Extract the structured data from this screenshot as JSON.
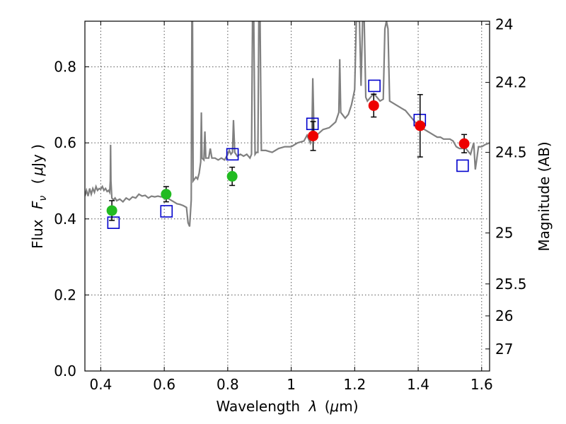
{
  "chart_data": {
    "type": "scatter",
    "xlabel_text": "Wavelength",
    "xlabel_symbol": "λ",
    "xlabel_unit_open": "(",
    "xlabel_unit_mu": "μ",
    "xlabel_unit_rest": "m)",
    "ylabel_text": "Flux",
    "ylabel_symbol": "F",
    "ylabel_sub": "ν",
    "ylabel_unit_open": "(",
    "ylabel_unit_mu": "μ",
    "ylabel_unit_rest": "Jy )",
    "y2label": "Magnitude (AB)",
    "xlim": [
      0.35,
      1.625
    ],
    "ylim": [
      0.0,
      0.92
    ],
    "grid": true,
    "x_ticks": [
      {
        "value": 0.4,
        "label": "0.4"
      },
      {
        "value": 0.6,
        "label": "0.6"
      },
      {
        "value": 0.8,
        "label": "0.8"
      },
      {
        "value": 1.0,
        "label": "1"
      },
      {
        "value": 1.2,
        "label": "1.2"
      },
      {
        "value": 1.4,
        "label": "1.4"
      },
      {
        "value": 1.6,
        "label": "1.6"
      }
    ],
    "y_ticks": [
      {
        "value": 0.0,
        "label": "0.0"
      },
      {
        "value": 0.2,
        "label": "0.2"
      },
      {
        "value": 0.4,
        "label": "0.4"
      },
      {
        "value": 0.6,
        "label": "0.6"
      },
      {
        "value": 0.8,
        "label": "0.8"
      }
    ],
    "y2_ticks": [
      {
        "label": "24",
        "flux": 0.912
      },
      {
        "label": "24.2",
        "flux": 0.759
      },
      {
        "label": "24.5",
        "flux": 0.575
      },
      {
        "label": "25",
        "flux": 0.363
      },
      {
        "label": "25.5",
        "flux": 0.229
      },
      {
        "label": "26",
        "flux": 0.145
      },
      {
        "label": "27",
        "flux": 0.058
      }
    ],
    "colors": {
      "spectrum": "#808080",
      "green": "#22bb22",
      "red": "#ee0000",
      "model": "#0000cc",
      "errorbar": "#000000"
    },
    "spectrum": [
      [
        0.35,
        0.46
      ],
      [
        0.355,
        0.475
      ],
      [
        0.36,
        0.46
      ],
      [
        0.365,
        0.48
      ],
      [
        0.37,
        0.465
      ],
      [
        0.375,
        0.48
      ],
      [
        0.38,
        0.47
      ],
      [
        0.385,
        0.485
      ],
      [
        0.39,
        0.475
      ],
      [
        0.395,
        0.48
      ],
      [
        0.4,
        0.478
      ],
      [
        0.405,
        0.485
      ],
      [
        0.41,
        0.475
      ],
      [
        0.415,
        0.48
      ],
      [
        0.42,
        0.472
      ],
      [
        0.425,
        0.475
      ],
      [
        0.428,
        0.47
      ],
      [
        0.43,
        0.5
      ],
      [
        0.431,
        0.595
      ],
      [
        0.432,
        0.5
      ],
      [
        0.435,
        0.455
      ],
      [
        0.44,
        0.45
      ],
      [
        0.445,
        0.455
      ],
      [
        0.45,
        0.448
      ],
      [
        0.46,
        0.452
      ],
      [
        0.47,
        0.445
      ],
      [
        0.48,
        0.455
      ],
      [
        0.49,
        0.45
      ],
      [
        0.5,
        0.458
      ],
      [
        0.51,
        0.455
      ],
      [
        0.52,
        0.465
      ],
      [
        0.53,
        0.46
      ],
      [
        0.54,
        0.462
      ],
      [
        0.55,
        0.455
      ],
      [
        0.56,
        0.46
      ],
      [
        0.57,
        0.458
      ],
      [
        0.58,
        0.46
      ],
      [
        0.59,
        0.458
      ],
      [
        0.6,
        0.46
      ],
      [
        0.61,
        0.455
      ],
      [
        0.62,
        0.45
      ],
      [
        0.63,
        0.445
      ],
      [
        0.64,
        0.44
      ],
      [
        0.65,
        0.438
      ],
      [
        0.66,
        0.435
      ],
      [
        0.67,
        0.43
      ],
      [
        0.675,
        0.39
      ],
      [
        0.68,
        0.38
      ],
      [
        0.685,
        0.45
      ],
      [
        0.687,
        0.92
      ],
      [
        0.689,
        0.92
      ],
      [
        0.691,
        0.5
      ],
      [
        0.7,
        0.51
      ],
      [
        0.705,
        0.505
      ],
      [
        0.71,
        0.52
      ],
      [
        0.715,
        0.55
      ],
      [
        0.717,
        0.68
      ],
      [
        0.719,
        0.56
      ],
      [
        0.725,
        0.555
      ],
      [
        0.728,
        0.63
      ],
      [
        0.731,
        0.56
      ],
      [
        0.74,
        0.56
      ],
      [
        0.745,
        0.585
      ],
      [
        0.75,
        0.56
      ],
      [
        0.76,
        0.56
      ],
      [
        0.77,
        0.555
      ],
      [
        0.78,
        0.56
      ],
      [
        0.79,
        0.555
      ],
      [
        0.8,
        0.57
      ],
      [
        0.805,
        0.58
      ],
      [
        0.81,
        0.57
      ],
      [
        0.815,
        0.575
      ],
      [
        0.818,
        0.66
      ],
      [
        0.822,
        0.575
      ],
      [
        0.83,
        0.565
      ],
      [
        0.84,
        0.57
      ],
      [
        0.85,
        0.565
      ],
      [
        0.86,
        0.57
      ],
      [
        0.87,
        0.56
      ],
      [
        0.875,
        0.57
      ],
      [
        0.878,
        0.92
      ],
      [
        0.882,
        0.92
      ],
      [
        0.886,
        0.57
      ],
      [
        0.89,
        0.575
      ],
      [
        0.895,
        0.575
      ],
      [
        0.898,
        0.92
      ],
      [
        0.902,
        0.92
      ],
      [
        0.906,
        0.58
      ],
      [
        0.92,
        0.58
      ],
      [
        0.94,
        0.575
      ],
      [
        0.96,
        0.585
      ],
      [
        0.98,
        0.59
      ],
      [
        1.0,
        0.59
      ],
      [
        1.02,
        0.6
      ],
      [
        1.04,
        0.605
      ],
      [
        1.05,
        0.62
      ],
      [
        1.06,
        0.6
      ],
      [
        1.065,
        0.62
      ],
      [
        1.068,
        0.77
      ],
      [
        1.072,
        0.62
      ],
      [
        1.08,
        0.62
      ],
      [
        1.1,
        0.635
      ],
      [
        1.12,
        0.64
      ],
      [
        1.14,
        0.655
      ],
      [
        1.15,
        0.68
      ],
      [
        1.153,
        0.82
      ],
      [
        1.156,
        0.68
      ],
      [
        1.17,
        0.665
      ],
      [
        1.18,
        0.675
      ],
      [
        1.19,
        0.7
      ],
      [
        1.195,
        0.72
      ],
      [
        1.2,
        0.74
      ],
      [
        1.205,
        0.92
      ],
      [
        1.215,
        0.92
      ],
      [
        1.22,
        0.75
      ],
      [
        1.225,
        0.92
      ],
      [
        1.23,
        0.92
      ],
      [
        1.235,
        0.72
      ],
      [
        1.24,
        0.71
      ],
      [
        1.25,
        0.72
      ],
      [
        1.26,
        0.73
      ],
      [
        1.27,
        0.72
      ],
      [
        1.28,
        0.71
      ],
      [
        1.29,
        0.715
      ],
      [
        1.295,
        0.9
      ],
      [
        1.3,
        0.92
      ],
      [
        1.305,
        0.9
      ],
      [
        1.31,
        0.71
      ],
      [
        1.32,
        0.705
      ],
      [
        1.33,
        0.7
      ],
      [
        1.34,
        0.695
      ],
      [
        1.35,
        0.69
      ],
      [
        1.36,
        0.685
      ],
      [
        1.37,
        0.675
      ],
      [
        1.38,
        0.665
      ],
      [
        1.39,
        0.655
      ],
      [
        1.4,
        0.645
      ],
      [
        1.41,
        0.64
      ],
      [
        1.42,
        0.635
      ],
      [
        1.43,
        0.63
      ],
      [
        1.44,
        0.625
      ],
      [
        1.45,
        0.62
      ],
      [
        1.46,
        0.615
      ],
      [
        1.47,
        0.615
      ],
      [
        1.48,
        0.61
      ],
      [
        1.49,
        0.61
      ],
      [
        1.5,
        0.61
      ],
      [
        1.51,
        0.605
      ],
      [
        1.52,
        0.59
      ],
      [
        1.53,
        0.585
      ],
      [
        1.54,
        0.585
      ],
      [
        1.55,
        0.585
      ],
      [
        1.56,
        0.575
      ],
      [
        1.565,
        0.57
      ],
      [
        1.57,
        0.585
      ],
      [
        1.575,
        0.6
      ],
      [
        1.58,
        0.53
      ],
      [
        1.585,
        0.56
      ],
      [
        1.59,
        0.59
      ],
      [
        1.6,
        0.59
      ],
      [
        1.61,
        0.595
      ],
      [
        1.625,
        0.6
      ]
    ],
    "green_points": [
      {
        "x": 0.435,
        "y": 0.422,
        "err": 0.026
      },
      {
        "x": 0.606,
        "y": 0.465,
        "err": 0.02
      },
      {
        "x": 0.814,
        "y": 0.512,
        "err": 0.024
      }
    ],
    "red_points": [
      {
        "x": 1.069,
        "y": 0.618,
        "err": 0.038
      },
      {
        "x": 1.26,
        "y": 0.698,
        "err": 0.03
      },
      {
        "x": 1.406,
        "y": 0.645,
        "err": 0.082
      },
      {
        "x": 1.545,
        "y": 0.598,
        "err": 0.024
      }
    ],
    "model_points": [
      {
        "x": 0.44,
        "y": 0.39
      },
      {
        "x": 0.607,
        "y": 0.42
      },
      {
        "x": 0.815,
        "y": 0.57
      },
      {
        "x": 1.067,
        "y": 0.65
      },
      {
        "x": 1.262,
        "y": 0.75
      },
      {
        "x": 1.405,
        "y": 0.66
      },
      {
        "x": 1.54,
        "y": 0.54
      }
    ]
  }
}
